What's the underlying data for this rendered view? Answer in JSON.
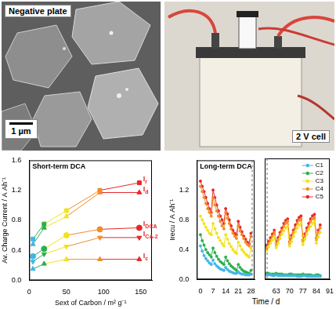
{
  "images": [
    {
      "label": "Negative plate",
      "scale_bar": "1 µm"
    },
    {
      "label": "2 V cell"
    }
  ],
  "chart_data": [
    {
      "type": "line",
      "title": "Short-term DCA",
      "x_label": "Sext of Carbon / m² g⁻¹",
      "y_label": "Av. Charge Current / A Ah⁻¹",
      "x": [
        5,
        20,
        50,
        95,
        148
      ],
      "colors": [
        "#41b6e6",
        "#2ab04a",
        "#f2e21a",
        "#f28c28",
        "#e8262a"
      ],
      "series": [
        {
          "name": "Ir",
          "marker": "square",
          "values": [
            0.55,
            0.75,
            0.93,
            1.2,
            1.3
          ]
        },
        {
          "name": "Id",
          "marker": "triangle",
          "values": [
            0.48,
            0.7,
            0.85,
            1.17,
            1.17
          ]
        },
        {
          "name": "IDCA",
          "marker": "circle",
          "values": [
            0.32,
            0.42,
            0.6,
            0.68,
            0.7
          ]
        },
        {
          "name": "ICA-2",
          "marker": "triangle-down",
          "values": [
            0.25,
            0.35,
            0.45,
            0.57,
            0.57
          ]
        },
        {
          "name": "Ic",
          "marker": "triangle",
          "values": [
            0.15,
            0.22,
            0.28,
            0.28,
            0.28
          ]
        }
      ],
      "xlim": [
        0,
        165
      ],
      "xticks": [
        0,
        50,
        100,
        150
      ],
      "ylim": [
        0,
        1.6
      ],
      "yticks": [
        {
          "value": 0,
          "label": "0.0"
        },
        0.4,
        0.8,
        1.2,
        1.6
      ],
      "grid": false
    },
    {
      "type": "line",
      "title": "Long-term DCA",
      "x_label": "Time / d",
      "y_label": "Irecu / A Ah⁻¹",
      "marker": "circle",
      "x": [
        0,
        1,
        2,
        3,
        4,
        5,
        6,
        7,
        8,
        9,
        10,
        11,
        12,
        13,
        14,
        15,
        16,
        17,
        18,
        19,
        20,
        21,
        22,
        23,
        24,
        25,
        26,
        27,
        28
      ],
      "series": [
        {
          "name": "C1",
          "color": "#41b6e6",
          "values": [
            0.45,
            0.38,
            0.32,
            0.28,
            0.25,
            0.22,
            0.2,
            0.26,
            0.21,
            0.18,
            0.16,
            0.14,
            0.13,
            0.12,
            0.16,
            0.13,
            0.11,
            0.1,
            0.09,
            0.08,
            0.08,
            0.1,
            0.08,
            0.07,
            0.07,
            0.06,
            0.06,
            0.06,
            0.07
          ]
        },
        {
          "name": "C2",
          "color": "#2ab04a",
          "values": [
            0.6,
            0.52,
            0.46,
            0.4,
            0.36,
            0.33,
            0.3,
            0.42,
            0.36,
            0.31,
            0.27,
            0.24,
            0.22,
            0.2,
            0.3,
            0.25,
            0.21,
            0.18,
            0.16,
            0.14,
            0.12,
            0.2,
            0.16,
            0.13,
            0.11,
            0.1,
            0.09,
            0.08,
            0.12
          ]
        },
        {
          "name": "C3",
          "color": "#f2e21a",
          "values": [
            0.85,
            0.8,
            0.75,
            0.7,
            0.66,
            0.62,
            0.6,
            0.75,
            0.68,
            0.62,
            0.56,
            0.52,
            0.48,
            0.45,
            0.6,
            0.54,
            0.48,
            0.44,
            0.4,
            0.37,
            0.35,
            0.5,
            0.45,
            0.4,
            0.37,
            0.34,
            0.32,
            0.3,
            0.42
          ]
        },
        {
          "name": "C4",
          "color": "#f28c28",
          "values": [
            1.25,
            1.18,
            1.1,
            1.02,
            0.95,
            0.9,
            0.85,
            1.1,
            1.0,
            0.92,
            0.85,
            0.78,
            0.72,
            0.68,
            0.9,
            0.82,
            0.75,
            0.68,
            0.62,
            0.58,
            0.55,
            0.72,
            0.65,
            0.6,
            0.55,
            0.5,
            0.47,
            0.45,
            0.58
          ]
        },
        {
          "name": "C5",
          "color": "#e8262a",
          "values": [
            1.32,
            1.25,
            1.18,
            1.1,
            1.02,
            0.95,
            0.9,
            1.2,
            1.1,
            1.0,
            0.92,
            0.85,
            0.8,
            0.75,
            0.95,
            0.88,
            0.8,
            0.72,
            0.66,
            0.62,
            0.6,
            0.78,
            0.7,
            0.64,
            0.58,
            0.54,
            0.5,
            0.48,
            0.62
          ]
        }
      ],
      "xlim": [
        -2,
        30
      ],
      "xticks": [
        0,
        7,
        14,
        21,
        28
      ],
      "ylim": [
        0,
        1.6
      ],
      "yticks": [
        {
          "value": 0,
          "label": "0.0"
        },
        0.4,
        0.8,
        1.2
      ],
      "grid": false
    },
    {
      "type": "line",
      "marker": "circle",
      "tick_labels": "x",
      "legend": "upper right",
      "x": [
        58,
        59,
        60,
        61,
        62,
        63,
        64,
        65,
        66,
        67,
        68,
        69,
        70,
        71,
        72,
        73,
        74,
        75,
        76,
        77,
        78,
        79,
        80,
        81,
        82,
        83,
        84,
        85,
        86
      ],
      "series": [
        {
          "name": "C1",
          "color": "#41b6e6",
          "values": [
            0.06,
            0.06,
            0.06,
            0.05,
            0.05,
            0.06,
            0.05,
            0.05,
            0.05,
            0.05,
            0.05,
            0.05,
            0.05,
            0.05,
            0.05,
            0.05,
            0.04,
            0.04,
            0.04,
            0.05,
            0.05,
            0.04,
            0.04,
            0.04,
            0.04,
            0.04,
            0.04,
            0.04,
            0.04
          ]
        },
        {
          "name": "C2",
          "color": "#2ab04a",
          "values": [
            0.08,
            0.08,
            0.07,
            0.07,
            0.07,
            0.08,
            0.07,
            0.07,
            0.07,
            0.06,
            0.06,
            0.06,
            0.07,
            0.07,
            0.06,
            0.06,
            0.06,
            0.06,
            0.06,
            0.07,
            0.06,
            0.06,
            0.06,
            0.06,
            0.05,
            0.05,
            0.06,
            0.06,
            0.05
          ]
        },
        {
          "name": "C3",
          "color": "#f2e21a",
          "values": [
            0.38,
            0.43,
            0.48,
            0.52,
            0.56,
            0.42,
            0.48,
            0.54,
            0.6,
            0.64,
            0.68,
            0.7,
            0.44,
            0.5,
            0.57,
            0.63,
            0.68,
            0.72,
            0.74,
            0.46,
            0.53,
            0.6,
            0.66,
            0.7,
            0.74,
            0.76,
            0.48,
            0.56,
            0.62
          ]
        },
        {
          "name": "C4",
          "color": "#f28c28",
          "values": [
            0.42,
            0.47,
            0.52,
            0.57,
            0.62,
            0.45,
            0.52,
            0.59,
            0.65,
            0.7,
            0.74,
            0.77,
            0.47,
            0.55,
            0.62,
            0.68,
            0.74,
            0.78,
            0.8,
            0.5,
            0.57,
            0.64,
            0.7,
            0.76,
            0.8,
            0.82,
            0.52,
            0.62,
            0.68
          ]
        },
        {
          "name": "C5",
          "color": "#e8262a",
          "values": [
            0.45,
            0.5,
            0.55,
            0.6,
            0.65,
            0.48,
            0.55,
            0.62,
            0.68,
            0.74,
            0.78,
            0.8,
            0.5,
            0.58,
            0.65,
            0.72,
            0.78,
            0.82,
            0.84,
            0.52,
            0.6,
            0.68,
            0.74,
            0.8,
            0.84,
            0.86,
            0.55,
            0.65,
            0.72
          ]
        }
      ],
      "xlim": [
        57,
        91
      ],
      "xticks": [
        63,
        70,
        77,
        84,
        91
      ],
      "ylim": [
        0,
        1.6
      ],
      "yticks": [
        {
          "value": 0,
          "label": "0.0"
        },
        0.4,
        0.8,
        1.2
      ],
      "grid": false
    }
  ]
}
